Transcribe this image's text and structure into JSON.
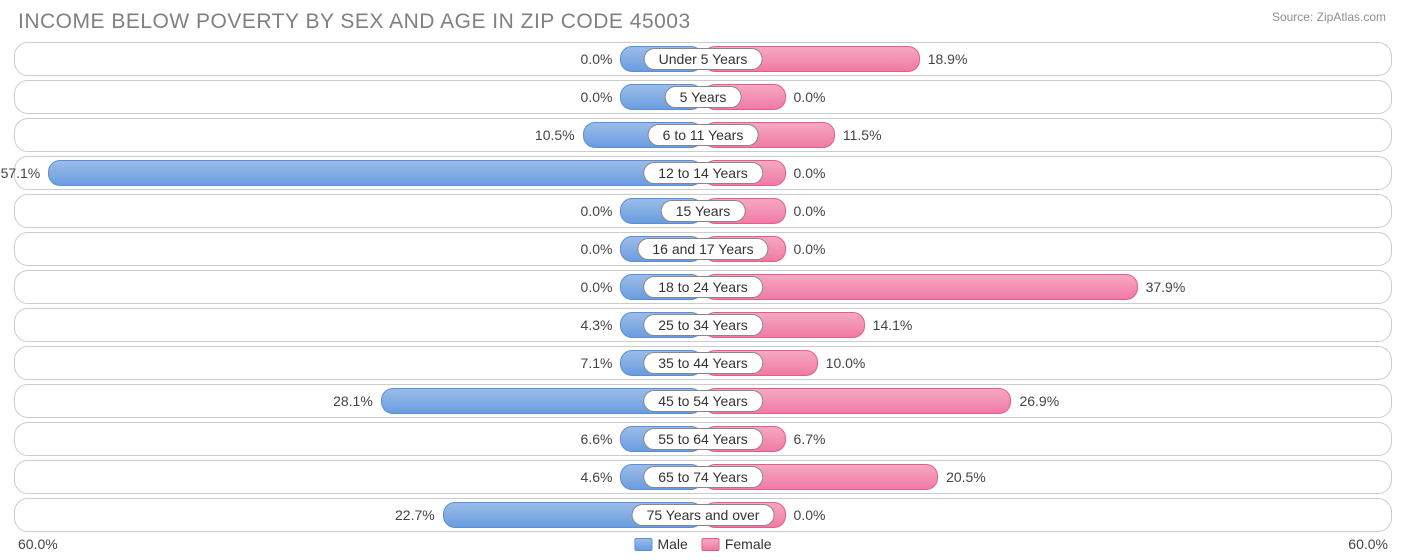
{
  "title": "INCOME BELOW POVERTY BY SEX AND AGE IN ZIP CODE 45003",
  "source": "Source: ZipAtlas.com",
  "axis_max": 60.0,
  "axis_label_left": "60.0%",
  "axis_label_right": "60.0%",
  "min_bar_pct": 12.0,
  "colors": {
    "male_fill_start": "#9cbce8",
    "male_fill_end": "#6a9de0",
    "male_border": "#5a8fd6",
    "female_fill_start": "#f6a8c2",
    "female_fill_end": "#ef7ba5",
    "female_border": "#e65a8f",
    "row_border": "#cccccc",
    "text": "#444444",
    "title_color": "#808080",
    "background": "#ffffff"
  },
  "legend": {
    "male": "Male",
    "female": "Female"
  },
  "rows": [
    {
      "category": "Under 5 Years",
      "male": 0.0,
      "male_label": "0.0%",
      "female": 18.9,
      "female_label": "18.9%"
    },
    {
      "category": "5 Years",
      "male": 0.0,
      "male_label": "0.0%",
      "female": 0.0,
      "female_label": "0.0%"
    },
    {
      "category": "6 to 11 Years",
      "male": 10.5,
      "male_label": "10.5%",
      "female": 11.5,
      "female_label": "11.5%"
    },
    {
      "category": "12 to 14 Years",
      "male": 57.1,
      "male_label": "57.1%",
      "female": 0.0,
      "female_label": "0.0%"
    },
    {
      "category": "15 Years",
      "male": 0.0,
      "male_label": "0.0%",
      "female": 0.0,
      "female_label": "0.0%"
    },
    {
      "category": "16 and 17 Years",
      "male": 0.0,
      "male_label": "0.0%",
      "female": 0.0,
      "female_label": "0.0%"
    },
    {
      "category": "18 to 24 Years",
      "male": 0.0,
      "male_label": "0.0%",
      "female": 37.9,
      "female_label": "37.9%"
    },
    {
      "category": "25 to 34 Years",
      "male": 4.3,
      "male_label": "4.3%",
      "female": 14.1,
      "female_label": "14.1%"
    },
    {
      "category": "35 to 44 Years",
      "male": 7.1,
      "male_label": "7.1%",
      "female": 10.0,
      "female_label": "10.0%"
    },
    {
      "category": "45 to 54 Years",
      "male": 28.1,
      "male_label": "28.1%",
      "female": 26.9,
      "female_label": "26.9%"
    },
    {
      "category": "55 to 64 Years",
      "male": 6.6,
      "male_label": "6.6%",
      "female": 6.7,
      "female_label": "6.7%"
    },
    {
      "category": "65 to 74 Years",
      "male": 4.6,
      "male_label": "4.6%",
      "female": 20.5,
      "female_label": "20.5%"
    },
    {
      "category": "75 Years and over",
      "male": 22.7,
      "male_label": "22.7%",
      "female": 0.0,
      "female_label": "0.0%"
    }
  ]
}
